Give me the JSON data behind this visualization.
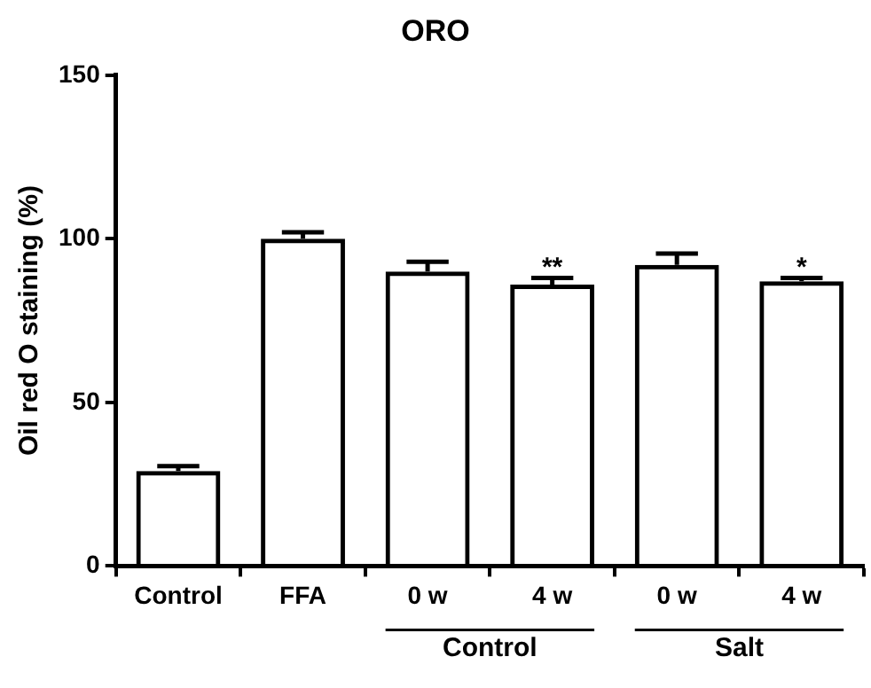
{
  "chart_data": {
    "type": "bar",
    "title": "ORO",
    "ylabel": "Oil red O staining (%)",
    "categories": [
      "Control",
      "FFA",
      "0 w",
      "4 w",
      "0 w",
      "4 w"
    ],
    "values": [
      29,
      100,
      90,
      86,
      92,
      87
    ],
    "errors": [
      1.5,
      2,
      3,
      2,
      3.5,
      1
    ],
    "color": "#000000",
    "ylim": [
      0,
      150
    ],
    "yticks": [
      0,
      50,
      100,
      150
    ],
    "grid": false,
    "legend": false,
    "annotations": [
      "**",
      "*",
      "Control",
      "Salt"
    ]
  }
}
